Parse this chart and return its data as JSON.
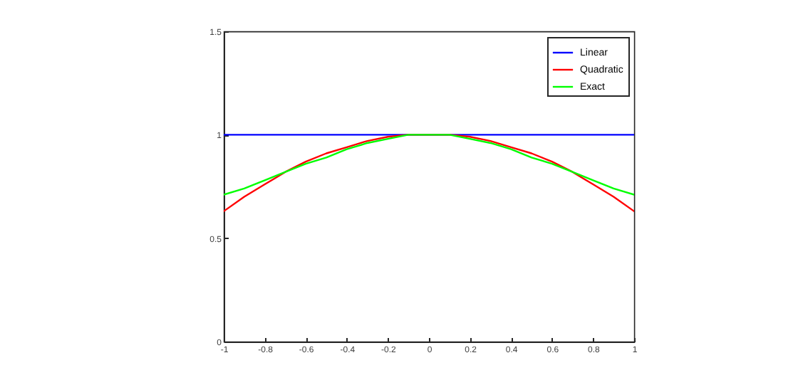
{
  "chart_data": {
    "type": "line",
    "x": [
      -1,
      -0.9,
      -0.8,
      -0.7,
      -0.6,
      -0.5,
      -0.4,
      -0.3,
      -0.2,
      -0.1,
      0,
      0.1,
      0.2,
      0.3,
      0.4,
      0.5,
      0.6,
      0.7,
      0.8,
      0.9,
      1
    ],
    "series": [
      {
        "name": "Linear",
        "color": "#0000ff",
        "values": [
          1,
          1,
          1,
          1,
          1,
          1,
          1,
          1,
          1,
          1,
          1,
          1,
          1,
          1,
          1,
          1,
          1,
          1,
          1,
          1,
          1
        ]
      },
      {
        "name": "Quadratic",
        "color": "#ff0000",
        "values": [
          0.63,
          0.7,
          0.76,
          0.82,
          0.87,
          0.91,
          0.94,
          0.97,
          0.99,
          1,
          1,
          1,
          0.99,
          0.97,
          0.94,
          0.91,
          0.87,
          0.82,
          0.76,
          0.7,
          0.63
        ]
      },
      {
        "name": "Exact",
        "color": "#00ff00",
        "values": [
          0.71,
          0.74,
          0.78,
          0.82,
          0.86,
          0.89,
          0.93,
          0.96,
          0.98,
          1,
          1,
          1,
          0.98,
          0.96,
          0.93,
          0.89,
          0.86,
          0.82,
          0.78,
          0.74,
          0.71
        ]
      }
    ],
    "xlim": [
      -1,
      1
    ],
    "xticks": [
      -1,
      -0.8,
      -0.6,
      -0.4,
      -0.2,
      0,
      0.2,
      0.4,
      0.6,
      0.8,
      1
    ],
    "ylim": [
      0,
      1.5
    ],
    "yticks": [
      0,
      0.5,
      1,
      1.5
    ],
    "legend": "top right",
    "marker": "none",
    "line_style": "solid"
  }
}
